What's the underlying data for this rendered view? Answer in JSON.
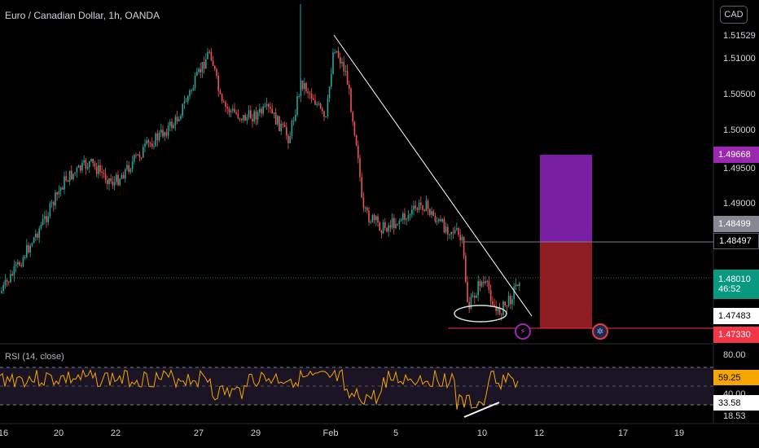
{
  "header": {
    "symbol_title": "Euro / Canadian Dollar, 1h, OANDA",
    "currency_button": "CAD"
  },
  "price_axis": {
    "ticks": [
      "1.51529",
      "1.51000",
      "1.50500",
      "1.50000",
      "1.49500",
      "1.49000"
    ]
  },
  "price_badges": {
    "target": {
      "value": "1.49668",
      "bg": "#9c27b0"
    },
    "entry_top": {
      "value": "1.48499",
      "bg": "#868993"
    },
    "entry_bottom": {
      "value": "1.48497",
      "bg": "#000000"
    },
    "current": {
      "value": "1.48010",
      "countdown": "46:52",
      "bg": "#089981"
    },
    "low": {
      "value": "1.47483",
      "bg": "#ffffff"
    },
    "stop": {
      "value": "1.47330",
      "bg": "#f23645"
    }
  },
  "rsi": {
    "label": "RSI (14, close)",
    "ticks": [
      "80.00",
      "40.00",
      "18.53"
    ],
    "value_badge": {
      "value": "59.25",
      "bg": "#f7a600"
    },
    "second_badge": {
      "value": "33.58",
      "bg": "#ffffff"
    }
  },
  "time_axis": {
    "ticks": [
      "16",
      "20",
      "22",
      "27",
      "29",
      "Feb",
      "5",
      "10",
      "12",
      "17",
      "19"
    ]
  },
  "colors": {
    "bull": "#26a69a",
    "bear": "#ef5350",
    "trendline": "#ffffff",
    "profit_zone": "#7b1fa2",
    "loss_zone": "#8e1c21",
    "rsi_line": "#f7a600"
  },
  "icons": {
    "alert": "lightning-icon",
    "event": "calendar-icon"
  }
}
